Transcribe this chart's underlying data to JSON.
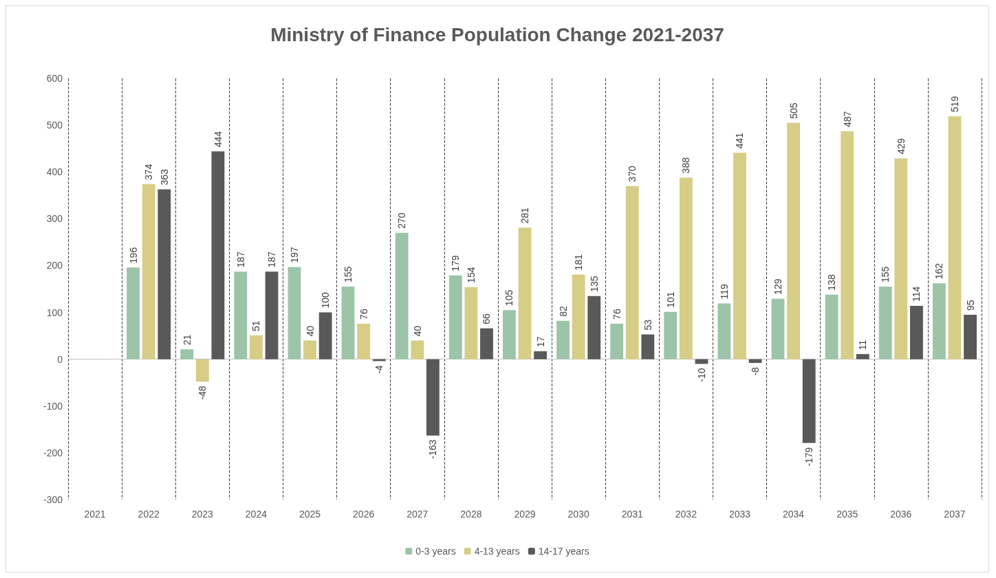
{
  "chart_data": {
    "type": "bar",
    "title": "Ministry of Finance Population Change 2021-2037",
    "categories": [
      "2021",
      "2022",
      "2023",
      "2024",
      "2025",
      "2026",
      "2027",
      "2028",
      "2029",
      "2030",
      "2031",
      "2032",
      "2033",
      "2034",
      "2035",
      "2036",
      "2037"
    ],
    "series": [
      {
        "name": "0-3 years",
        "color": "#9cc4a8",
        "values": [
          null,
          196,
          21,
          187,
          197,
          155,
          270,
          179,
          105,
          82,
          76,
          101,
          119,
          129,
          138,
          155,
          162
        ]
      },
      {
        "name": "4-13 years",
        "color": "#d6cd86",
        "values": [
          null,
          374,
          -48,
          51,
          40,
          76,
          40,
          154,
          281,
          181,
          370,
          388,
          441,
          505,
          487,
          429,
          519
        ]
      },
      {
        "name": "14-17 years",
        "color": "#595959",
        "values": [
          null,
          363,
          444,
          187,
          100,
          -4,
          -163,
          66,
          17,
          135,
          53,
          -10,
          -8,
          -179,
          11,
          114,
          95
        ]
      }
    ],
    "ylim": [
      -300,
      600
    ],
    "yticks": [
      -300,
      -200,
      -100,
      0,
      100,
      200,
      300,
      400,
      500,
      600
    ],
    "grid": "x",
    "legend": "bottom",
    "data_labels": true
  }
}
